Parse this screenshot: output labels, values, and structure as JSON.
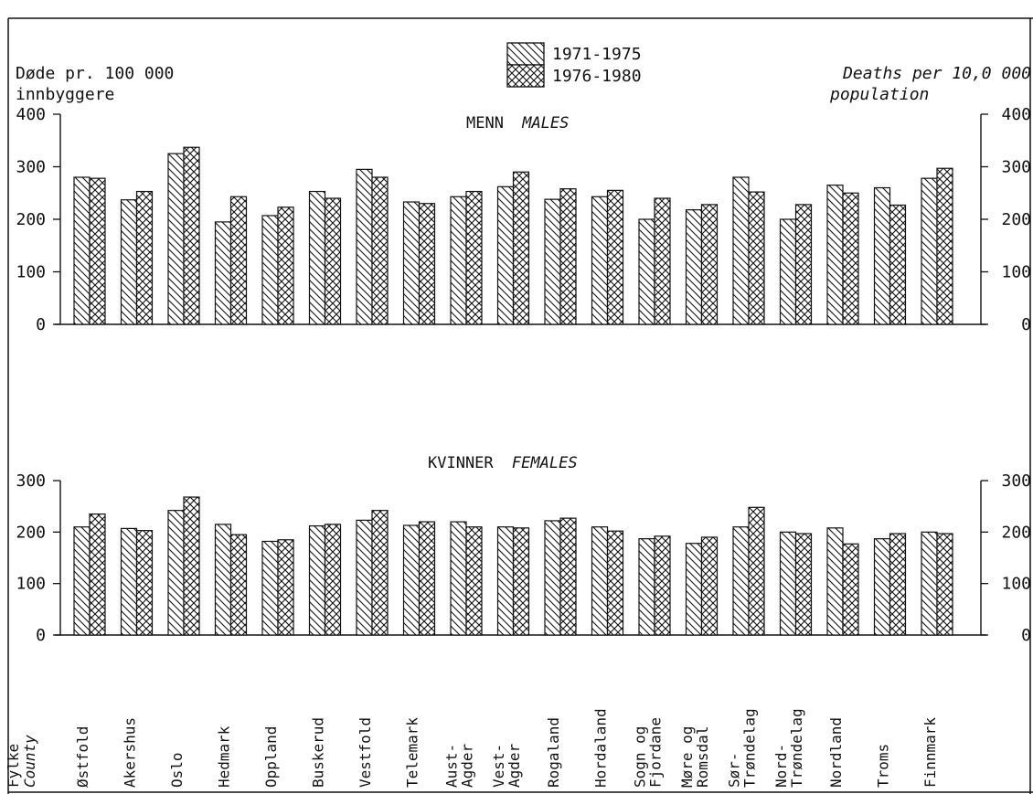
{
  "chart_data": [
    {
      "type": "bar",
      "panel": "males",
      "title": "MENN",
      "title_en": "MALES",
      "ylabel_left": [
        "Døde pr. 100 000",
        "innbyggere"
      ],
      "ylabel_right": [
        "Deaths per 10,0 000",
        "population"
      ],
      "ylim": [
        0,
        400
      ],
      "yticks": [
        "0",
        "100",
        "200",
        "300",
        "400"
      ],
      "categories": [
        "Østfold",
        "Akershus",
        "Oslo",
        "Hedmark",
        "Oppland",
        "Buskerud",
        "Vestfold",
        "Telemark",
        "Aust-Agder",
        "Vest-Agder",
        "Rogaland",
        "Hordaland",
        "Sogn og Fjordane",
        "Møre og Romsdal",
        "Sør-Trøndelag",
        "Nord-Trøndelag",
        "Nordland",
        "Troms",
        "Finnmark"
      ],
      "series": [
        {
          "name": "1971-1975",
          "values": [
            280,
            237,
            325,
            195,
            207,
            253,
            295,
            233,
            243,
            262,
            238,
            243,
            200,
            218,
            280,
            200,
            265,
            260,
            278
          ]
        },
        {
          "name": "1976-1980",
          "values": [
            278,
            253,
            337,
            243,
            223,
            240,
            280,
            230,
            253,
            290,
            258,
            255,
            240,
            228,
            252,
            228,
            250,
            227,
            297
          ]
        }
      ],
      "grid": false,
      "legend_position": "top-center"
    },
    {
      "type": "bar",
      "panel": "females",
      "title": "KVINNER",
      "title_en": "FEMALES",
      "ylim": [
        0,
        300
      ],
      "yticks": [
        "0",
        "100",
        "200",
        "300"
      ],
      "categories": [
        "Østfold",
        "Akershus",
        "Oslo",
        "Hedmark",
        "Oppland",
        "Buskerud",
        "Vestfold",
        "Telemark",
        "Aust-Agder",
        "Vest-Agder",
        "Rogaland",
        "Hordaland",
        "Sogn og Fjordane",
        "Møre og Romsdal",
        "Sør-Trøndelag",
        "Nord-Trøndelag",
        "Nordland",
        "Troms",
        "Finnmark"
      ],
      "series": [
        {
          "name": "1971-1975",
          "values": [
            210,
            207,
            242,
            215,
            182,
            212,
            223,
            213,
            220,
            210,
            222,
            210,
            187,
            178,
            210,
            200,
            208,
            187,
            200
          ]
        },
        {
          "name": "1976-1980",
          "values": [
            235,
            203,
            268,
            195,
            185,
            215,
            242,
            220,
            210,
            208,
            227,
            202,
            192,
            190,
            248,
            197,
            177,
            197,
            197
          ]
        }
      ],
      "grid": false
    }
  ],
  "legend": [
    "1971-1975",
    "1976-1980"
  ],
  "x_axis_caption": [
    "Fylke",
    "County"
  ],
  "county_labels": [
    [
      "Østfold"
    ],
    [
      "Akershus"
    ],
    [
      "Oslo"
    ],
    [
      "Hedmark"
    ],
    [
      "Oppland"
    ],
    [
      "Buskerud"
    ],
    [
      "Vestfold"
    ],
    [
      "Telemark"
    ],
    [
      "Aust-",
      "Agder"
    ],
    [
      "Vest-",
      "Agder"
    ],
    [
      "Rogaland"
    ],
    [
      "Hordaland"
    ],
    [
      "Sogn og",
      "Fjordane"
    ],
    [
      "Møre og",
      "Romsdal"
    ],
    [
      "Sør-",
      "Trøndelag"
    ],
    [
      "Nord-",
      "Trøndelag"
    ],
    [
      "Nordland"
    ],
    [
      "Troms"
    ],
    [
      "Finnmark"
    ]
  ],
  "colors": {
    "ink": "#111111",
    "background": "#ffffff"
  }
}
